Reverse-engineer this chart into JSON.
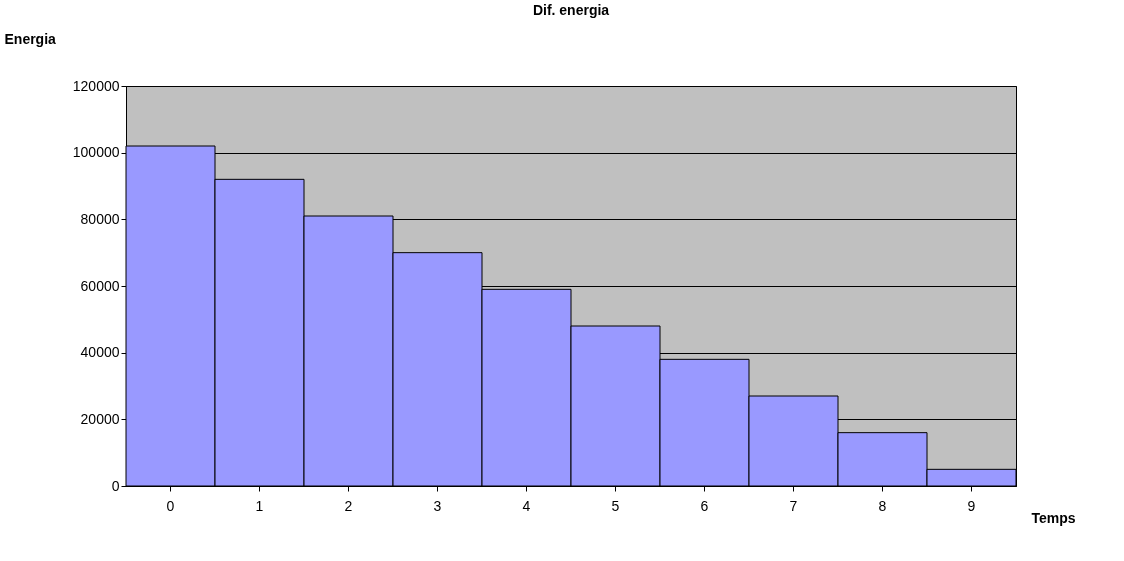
{
  "chart_data": {
    "type": "bar",
    "title": "Dif. energia",
    "xlabel": "Temps",
    "ylabel": "Energia",
    "categories": [
      "0",
      "1",
      "2",
      "3",
      "4",
      "5",
      "6",
      "7",
      "8",
      "9"
    ],
    "values": [
      102000,
      92000,
      81000,
      70000,
      59000,
      48000,
      38000,
      27000,
      16000,
      5000
    ],
    "color": "#9999ff",
    "ylim": [
      0,
      120000
    ],
    "yticks": [
      0,
      20000,
      40000,
      60000,
      80000,
      100000,
      120000
    ],
    "grid": "y"
  }
}
